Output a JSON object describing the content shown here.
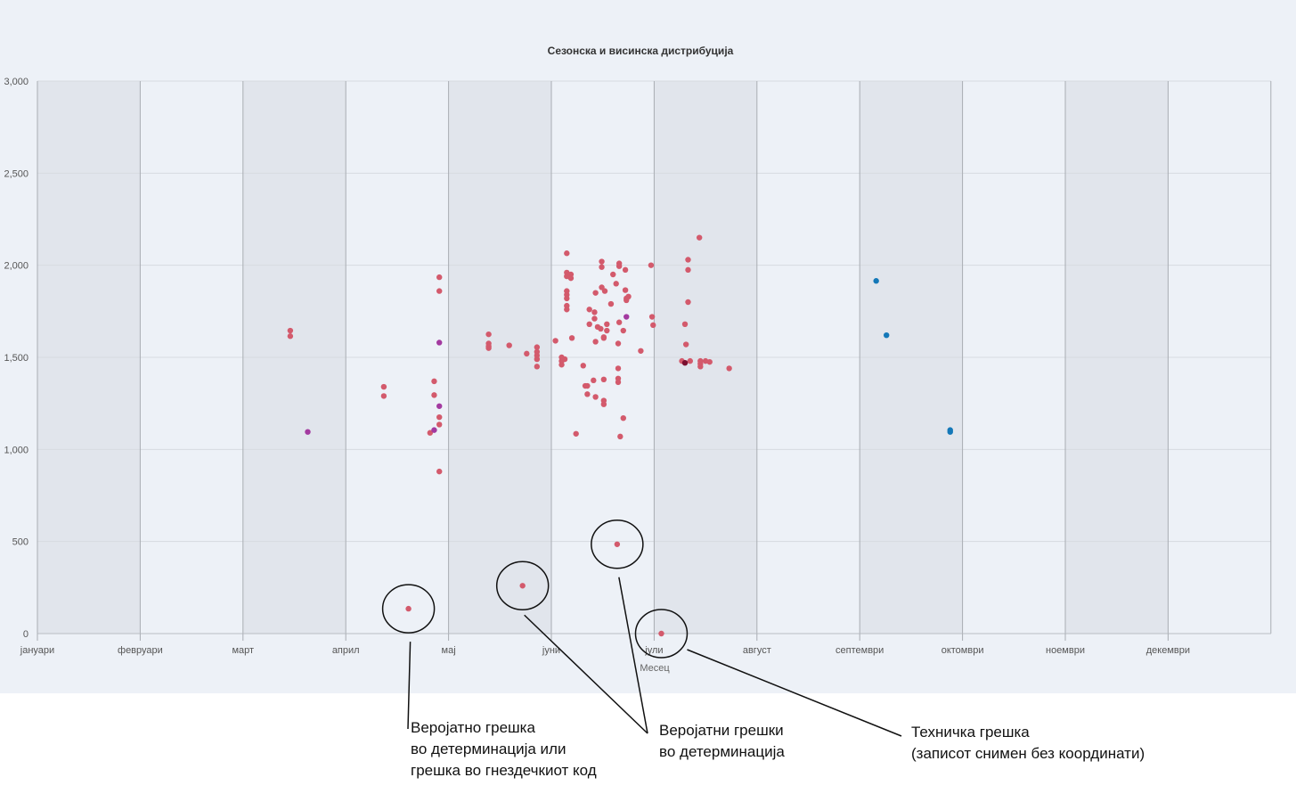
{
  "chart_data": {
    "type": "scatter",
    "title": "Сезонска и висинска дистрибуција",
    "xlabel": "Месец",
    "ylabel": "",
    "x_ticks": [
      "јануари",
      "февруари",
      "март",
      "април",
      "мај",
      "јуни",
      "јули",
      "август",
      "септември",
      "октомври",
      "ноември",
      "декември"
    ],
    "xlim": [
      0,
      12
    ],
    "ylim": [
      0,
      3000
    ],
    "y_ticks": [
      0,
      500,
      1000,
      1500,
      2000,
      2500,
      3000
    ],
    "y_tick_labels": [
      "0",
      "500",
      "1,000",
      "1,500",
      "2,000",
      "2,500",
      "3,000"
    ],
    "alternating_month_bands": true,
    "grid": true,
    "legend": "none",
    "colors": {
      "red": "#d35a6c",
      "purple": "#a33aa0",
      "blue": "#1478b8",
      "dark": "#7b1030"
    },
    "series": [
      {
        "color": "#d35a6c",
        "points": [
          [
            2.46,
            1645
          ],
          [
            2.46,
            1615
          ],
          [
            3.37,
            1340
          ],
          [
            3.37,
            1290
          ],
          [
            3.86,
            1370
          ],
          [
            3.86,
            1295
          ],
          [
            3.91,
            1935
          ],
          [
            3.91,
            1860
          ],
          [
            3.91,
            1175
          ],
          [
            3.91,
            1135
          ],
          [
            3.91,
            880
          ],
          [
            3.82,
            1090
          ],
          [
            4.39,
            1625
          ],
          [
            4.39,
            1575
          ],
          [
            4.39,
            1560
          ],
          [
            4.39,
            1550
          ],
          [
            4.59,
            1565
          ],
          [
            4.76,
            1520
          ],
          [
            4.86,
            1555
          ],
          [
            4.86,
            1530
          ],
          [
            4.86,
            1510
          ],
          [
            4.86,
            1490
          ],
          [
            4.86,
            1450
          ],
          [
            5.04,
            1590
          ],
          [
            5.1,
            1460
          ],
          [
            5.1,
            1480
          ],
          [
            5.1,
            1500
          ],
          [
            5.13,
            1490
          ],
          [
            5.15,
            1960
          ],
          [
            5.15,
            1940
          ],
          [
            5.15,
            1860
          ],
          [
            5.15,
            1840
          ],
          [
            5.15,
            1820
          ],
          [
            5.15,
            1780
          ],
          [
            5.15,
            1760
          ],
          [
            5.15,
            2065
          ],
          [
            5.19,
            1950
          ],
          [
            5.19,
            1930
          ],
          [
            5.2,
            1605
          ],
          [
            5.24,
            1085
          ],
          [
            5.31,
            1455
          ],
          [
            5.33,
            1345
          ],
          [
            5.35,
            1300
          ],
          [
            5.35,
            1345
          ],
          [
            5.37,
            1680
          ],
          [
            5.37,
            1760
          ],
          [
            5.41,
            1375
          ],
          [
            5.43,
            1285
          ],
          [
            5.42,
            1745
          ],
          [
            5.42,
            1710
          ],
          [
            5.43,
            1585
          ],
          [
            5.43,
            1850
          ],
          [
            5.45,
            1665
          ],
          [
            5.48,
            1655
          ],
          [
            5.49,
            1880
          ],
          [
            5.49,
            1990
          ],
          [
            5.49,
            2020
          ],
          [
            5.51,
            1610
          ],
          [
            5.51,
            1605
          ],
          [
            5.51,
            1380
          ],
          [
            5.51,
            1265
          ],
          [
            5.51,
            1245
          ],
          [
            5.52,
            1860
          ],
          [
            5.54,
            1680
          ],
          [
            5.54,
            1645
          ],
          [
            5.58,
            1790
          ],
          [
            5.6,
            1950
          ],
          [
            5.63,
            1900
          ],
          [
            5.65,
            1575
          ],
          [
            5.65,
            1440
          ],
          [
            5.65,
            1385
          ],
          [
            5.65,
            1365
          ],
          [
            5.66,
            2010
          ],
          [
            5.66,
            1995
          ],
          [
            5.66,
            1690
          ],
          [
            5.67,
            1070
          ],
          [
            5.7,
            1645
          ],
          [
            5.7,
            1170
          ],
          [
            5.72,
            1975
          ],
          [
            5.72,
            1865
          ],
          [
            5.73,
            1810
          ],
          [
            5.73,
            1820
          ],
          [
            5.75,
            1830
          ],
          [
            5.87,
            1535
          ],
          [
            5.97,
            2000
          ],
          [
            5.98,
            1720
          ],
          [
            5.99,
            1675
          ],
          [
            6.27,
            1480
          ],
          [
            6.3,
            1680
          ],
          [
            6.31,
            1570
          ],
          [
            6.33,
            1800
          ],
          [
            6.33,
            1975
          ],
          [
            6.33,
            2030
          ],
          [
            6.35,
            1480
          ],
          [
            6.44,
            2150
          ],
          [
            6.45,
            1465
          ],
          [
            6.45,
            1480
          ],
          [
            6.45,
            1450
          ],
          [
            6.5,
            1480
          ],
          [
            6.54,
            1475
          ],
          [
            6.73,
            1440
          ],
          [
            3.61,
            135
          ],
          [
            4.72,
            260
          ],
          [
            5.64,
            485
          ],
          [
            6.07,
            0
          ]
        ]
      },
      {
        "color": "#a33aa0",
        "points": [
          [
            2.63,
            1095
          ],
          [
            3.86,
            1105
          ],
          [
            3.91,
            1580
          ],
          [
            3.91,
            1235
          ],
          [
            5.73,
            1720
          ]
        ]
      },
      {
        "color": "#7b1030",
        "points": [
          [
            6.3,
            1470
          ]
        ]
      },
      {
        "color": "#1478b8",
        "points": [
          [
            8.16,
            1915
          ],
          [
            8.26,
            1620
          ],
          [
            8.88,
            1105
          ],
          [
            8.88,
            1095
          ]
        ]
      }
    ]
  },
  "annotations": [
    {
      "text": "Веројатно грешка\nво детерминација или\nгрешка во гнездечкиот код",
      "targets": [
        [
          3.61,
          135
        ]
      ]
    },
    {
      "text": "Веројатни грешки\nво детерминација",
      "targets": [
        [
          4.72,
          260
        ],
        [
          5.64,
          485
        ]
      ]
    },
    {
      "text": "Техничка грешка\n(записот снимен без координати)",
      "targets": [
        [
          6.07,
          0
        ]
      ]
    }
  ]
}
